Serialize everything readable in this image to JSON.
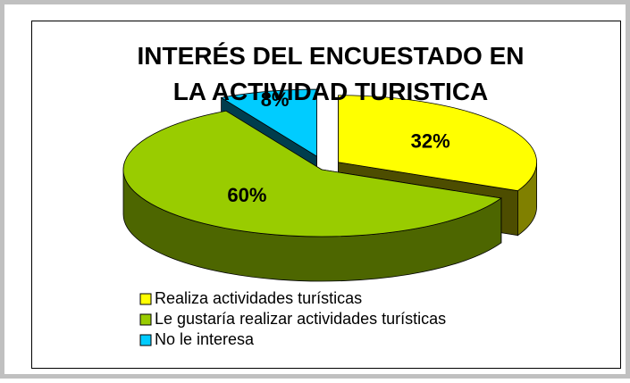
{
  "chart_data": {
    "type": "pie3d",
    "title": "INTERÉS DEL ENCUESTADO EN LA ACTIVIDAD TURISTICA",
    "categories": [
      "Realiza actividades turísticas",
      "Le gustaría realizar actividades turísticas",
      "No le interesa"
    ],
    "values": [
      32,
      60,
      8
    ],
    "value_labels": [
      "32%",
      "60%",
      "8%"
    ],
    "colors": [
      "#ffff00",
      "#99cc00",
      "#00ccff"
    ],
    "exploded": [
      true,
      false,
      true
    ],
    "legend": "bottom-left"
  }
}
